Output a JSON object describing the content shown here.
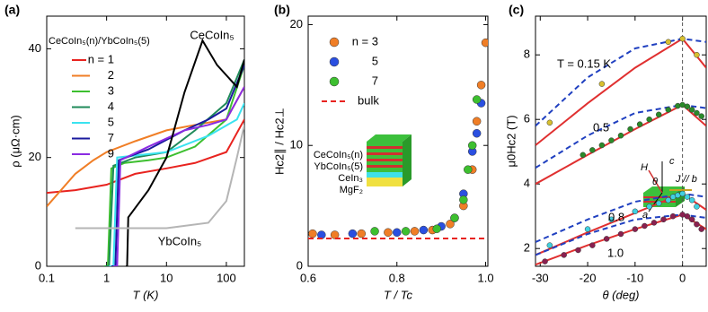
{
  "chart_data": [
    {
      "type": "line",
      "panel_label": "(a)",
      "xlabel": "T (K)",
      "ylabel": "ρ (μΩ·cm)",
      "xlog": true,
      "xlim": [
        0.1,
        200
      ],
      "ylim": [
        0,
        46
      ],
      "xticks": [
        0.1,
        1,
        10,
        100
      ],
      "yticks": [
        0,
        20,
        40
      ],
      "legend_title": "CeCoIn₅(n)/YbCoIn₅(5)",
      "series": [
        {
          "name": "n = 1",
          "color": "#e8231f",
          "mode": "line",
          "x": [
            0.1,
            0.3,
            1,
            3,
            10,
            30,
            100,
            200
          ],
          "values": [
            13.5,
            14,
            15,
            17,
            18,
            19,
            21,
            27
          ]
        },
        {
          "name": "2",
          "color": "#f07e26",
          "mode": "line",
          "x": [
            0.1,
            0.3,
            0.6,
            1,
            3,
            10,
            30,
            100,
            200
          ],
          "values": [
            11,
            17,
            19.5,
            21,
            23,
            25,
            26,
            27,
            33
          ]
        },
        {
          "name": "3",
          "color": "#3dbf2f",
          "mode": "line",
          "x": [
            0.9,
            1.05,
            1.2,
            2,
            5,
            10,
            30,
            100,
            200
          ],
          "values": [
            0,
            0,
            18,
            19,
            19.5,
            20,
            22,
            27,
            37
          ]
        },
        {
          "name": "4",
          "color": "#1f8a5a",
          "mode": "line",
          "x": [
            0.95,
            1.1,
            1.3,
            3,
            10,
            30,
            100,
            200
          ],
          "values": [
            0,
            0,
            18.5,
            20,
            21,
            25,
            30,
            38
          ]
        },
        {
          "name": "5",
          "color": "#3ae3f0",
          "mode": "line",
          "x": [
            1.1,
            1.3,
            1.5,
            10,
            50,
            150,
            200
          ],
          "values": [
            0,
            0,
            20,
            21,
            24,
            27,
            30
          ]
        },
        {
          "name": "7",
          "color": "#1a1a9e",
          "mode": "line",
          "x": [
            1.2,
            1.4,
            1.6,
            5,
            20,
            50,
            100,
            200
          ],
          "values": [
            0,
            0,
            19.5,
            21.5,
            25,
            27,
            29,
            37
          ]
        },
        {
          "name": "9",
          "color": "#8a2be2",
          "mode": "line",
          "x": [
            1.3,
            1.5,
            1.7,
            5,
            20,
            50,
            100,
            200
          ],
          "values": [
            0,
            0,
            19.5,
            22,
            25,
            26,
            27,
            33
          ]
        },
        {
          "name": "CeCoIn₅",
          "color": "#000000",
          "mode": "line",
          "in_plot_label": true,
          "x": [
            2.1,
            2.2,
            2.3,
            5,
            10,
            20,
            40,
            70,
            150,
            200
          ],
          "values": [
            0,
            0,
            9,
            14,
            20,
            32,
            41.5,
            37,
            33,
            38
          ]
        },
        {
          "name": "YbCoIn₅",
          "color": "#b5b5b5",
          "mode": "line",
          "in_plot_label": true,
          "x": [
            0.3,
            10,
            50,
            100,
            150,
            200
          ],
          "values": [
            7,
            7,
            8,
            12,
            20,
            26
          ]
        }
      ]
    },
    {
      "type": "scatter",
      "panel_label": "(b)",
      "xlabel": "T / Tc",
      "ylabel": "Hc2∥ / Hc2⊥",
      "xlim": [
        0.6,
        1.005
      ],
      "ylim": [
        0,
        20.7
      ],
      "xticks": [
        0.6,
        0.8,
        {
          "value": 1,
          "label": "1.0"
        }
      ],
      "yticks": [
        0,
        10,
        20
      ],
      "inset_labels": [
        "CeCoIn₅(n)",
        "YbCoIn₅(5)",
        "CeIn₃",
        "MgF₂"
      ],
      "series": [
        {
          "name": "n = 3",
          "color": "#f07e26",
          "mode": "markers",
          "x": [
            0.61,
            0.66,
            0.72,
            0.78,
            0.84,
            0.88,
            0.92,
            0.95,
            0.97,
            0.98,
            0.99,
            1.0
          ],
          "values": [
            2.7,
            2.6,
            2.7,
            2.8,
            2.9,
            3.0,
            3.5,
            5,
            8,
            12,
            15,
            18.5
          ]
        },
        {
          "name": "5",
          "color": "#2a4fe0",
          "mode": "markers",
          "x": [
            0.63,
            0.7,
            0.8,
            0.86,
            0.9,
            0.93,
            0.95,
            0.97,
            0.98,
            0.99
          ],
          "values": [
            2.6,
            2.7,
            2.8,
            3.0,
            3.3,
            4.0,
            6,
            9.5,
            11,
            13.5
          ]
        },
        {
          "name": "7",
          "color": "#3dbf2f",
          "mode": "markers",
          "x": [
            0.75,
            0.82,
            0.89,
            0.93,
            0.95,
            0.96,
            0.97,
            0.98
          ],
          "values": [
            2.9,
            2.9,
            3.1,
            4,
            5.5,
            8,
            10,
            13.8
          ]
        },
        {
          "name": "bulk",
          "color": "#e8231f",
          "mode": "dashed",
          "x": [
            0.6,
            1.0
          ],
          "values": [
            2.3,
            2.3
          ]
        }
      ]
    },
    {
      "type": "line",
      "panel_label": "(c)",
      "xlabel": "θ (deg)",
      "ylabel": "μ0Hc2 (T)",
      "xlim": [
        -31,
        5
      ],
      "ylim": [
        1.45,
        9.2
      ],
      "xticks": [
        -30,
        -20,
        -10,
        0
      ],
      "yticks": [
        2,
        4,
        6,
        8
      ],
      "vline": 0,
      "annotations": [
        "T = 0.15 K",
        "0.5",
        "0.8",
        "1.0"
      ],
      "inset_labels": [
        "H",
        "c",
        "θ",
        "J // b",
        "a"
      ],
      "series": [
        {
          "color": "#e03030",
          "mode": "line",
          "x": [
            -31,
            -20,
            -10,
            0,
            5
          ],
          "values": [
            5.2,
            6.5,
            7.6,
            8.5,
            7.6
          ]
        },
        {
          "color": "#2040c0",
          "mode": "dashed",
          "x": [
            -31,
            -20,
            -10,
            0,
            5
          ],
          "values": [
            5.8,
            7.3,
            8.2,
            8.5,
            8.4
          ]
        },
        {
          "color": "#e03030",
          "mode": "line",
          "x": [
            -31,
            -20,
            -10,
            0,
            5
          ],
          "values": [
            4.0,
            4.9,
            5.7,
            6.45,
            5.8
          ]
        },
        {
          "color": "#2040c0",
          "mode": "dashed",
          "x": [
            -31,
            -20,
            -10,
            0,
            5
          ],
          "values": [
            4.5,
            5.5,
            6.2,
            6.45,
            6.35
          ]
        },
        {
          "color": "#e03030",
          "mode": "line",
          "x": [
            -31,
            -20,
            -10,
            0,
            5
          ],
          "values": [
            1.8,
            2.5,
            3.1,
            3.7,
            3.2
          ]
        },
        {
          "color": "#2040c0",
          "mode": "dashed",
          "x": [
            -31,
            -20,
            -10,
            0,
            5
          ],
          "values": [
            2.2,
            2.9,
            3.45,
            3.7,
            3.6
          ]
        },
        {
          "color": "#e03030",
          "mode": "line",
          "x": [
            -31,
            -20,
            -10,
            0,
            5
          ],
          "values": [
            1.5,
            2.1,
            2.6,
            3.05,
            2.6
          ]
        },
        {
          "color": "#2040c0",
          "mode": "dashed",
          "x": [
            -31,
            -20,
            -10,
            0,
            5
          ],
          "values": [
            1.8,
            2.45,
            2.9,
            3.05,
            2.95
          ]
        },
        {
          "color": "#d8c030",
          "mode": "markers",
          "x": [
            -28,
            -17,
            -3,
            0,
            3
          ],
          "values": [
            5.9,
            7.1,
            8.4,
            8.5,
            8.0
          ]
        },
        {
          "color": "#2a8a2a",
          "mode": "markers",
          "x": [
            -21,
            -19,
            -17,
            -15,
            -13,
            -11,
            -9,
            -7,
            -5,
            -3,
            -1,
            0,
            1,
            2,
            3,
            4
          ],
          "values": [
            4.9,
            5.05,
            5.2,
            5.35,
            5.5,
            5.7,
            5.85,
            6.0,
            6.15,
            6.3,
            6.42,
            6.45,
            6.4,
            6.3,
            6.2,
            6.1
          ]
        },
        {
          "color": "#40d0e0",
          "mode": "markers",
          "x": [
            -28,
            -20,
            -15,
            -10,
            -7,
            -5,
            -3,
            -2,
            -1,
            0,
            1,
            2,
            3
          ],
          "values": [
            2.1,
            2.6,
            2.9,
            3.15,
            3.3,
            3.4,
            3.5,
            3.6,
            3.65,
            3.7,
            3.6,
            3.5,
            3.3
          ]
        },
        {
          "color": "#8a2050",
          "mode": "markers",
          "x": [
            -29,
            -25,
            -22,
            -19,
            -16,
            -13,
            -10,
            -8,
            -6,
            -4,
            -2,
            0,
            1,
            2,
            3,
            4
          ],
          "values": [
            1.6,
            1.8,
            1.95,
            2.1,
            2.3,
            2.45,
            2.6,
            2.7,
            2.8,
            2.9,
            3.0,
            3.05,
            3.0,
            2.9,
            2.75,
            2.6
          ]
        }
      ]
    }
  ]
}
